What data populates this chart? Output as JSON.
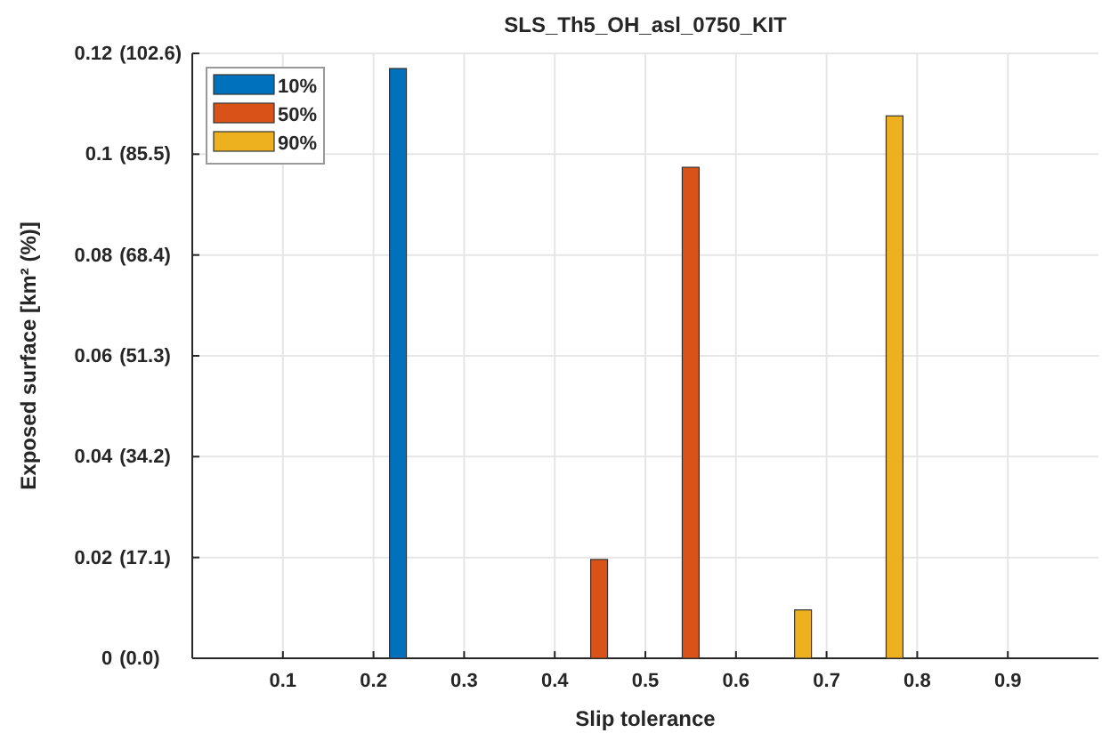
{
  "chart_data": {
    "type": "bar",
    "title": "SLS_Th5_OH_asl_0750_KIT",
    "xlabel": "Slip tolerance",
    "ylabel": "Exposed surface [km² (%)]",
    "series": [
      {
        "name": "10%",
        "color": "#0072bd",
        "x": [
          0.227
        ],
        "values": [
          0.117
        ]
      },
      {
        "name": "50%",
        "color": "#d95319",
        "x": [
          0.449,
          0.55
        ],
        "values": [
          0.0196,
          0.0974
        ]
      },
      {
        "name": "90%",
        "color": "#edb120",
        "x": [
          0.674,
          0.775
        ],
        "values": [
          0.0096,
          0.1076
        ]
      }
    ],
    "xlim": [
      0,
      1
    ],
    "xticks": [
      0.1,
      0.2,
      0.3,
      0.4,
      0.5,
      0.6,
      0.7,
      0.8,
      0.9
    ],
    "ylim": [
      0,
      0.12
    ],
    "yticks": [
      0,
      0.02,
      0.04,
      0.06,
      0.08,
      0.1,
      0.12
    ],
    "y2lim": [
      0,
      102.6
    ],
    "y2ticks": [
      {
        "value": 0,
        "label": "(0.0)"
      },
      {
        "value": 17.1,
        "label": "(17.1)"
      },
      {
        "value": 34.2,
        "label": "(34.2)"
      },
      {
        "value": 51.3,
        "label": "(51.3)"
      },
      {
        "value": 68.4,
        "label": "(68.4)"
      },
      {
        "value": 85.5,
        "label": "(85.5)"
      },
      {
        "value": 102.6,
        "label": "(102.6)"
      }
    ],
    "grid": true,
    "legend": "top left"
  }
}
